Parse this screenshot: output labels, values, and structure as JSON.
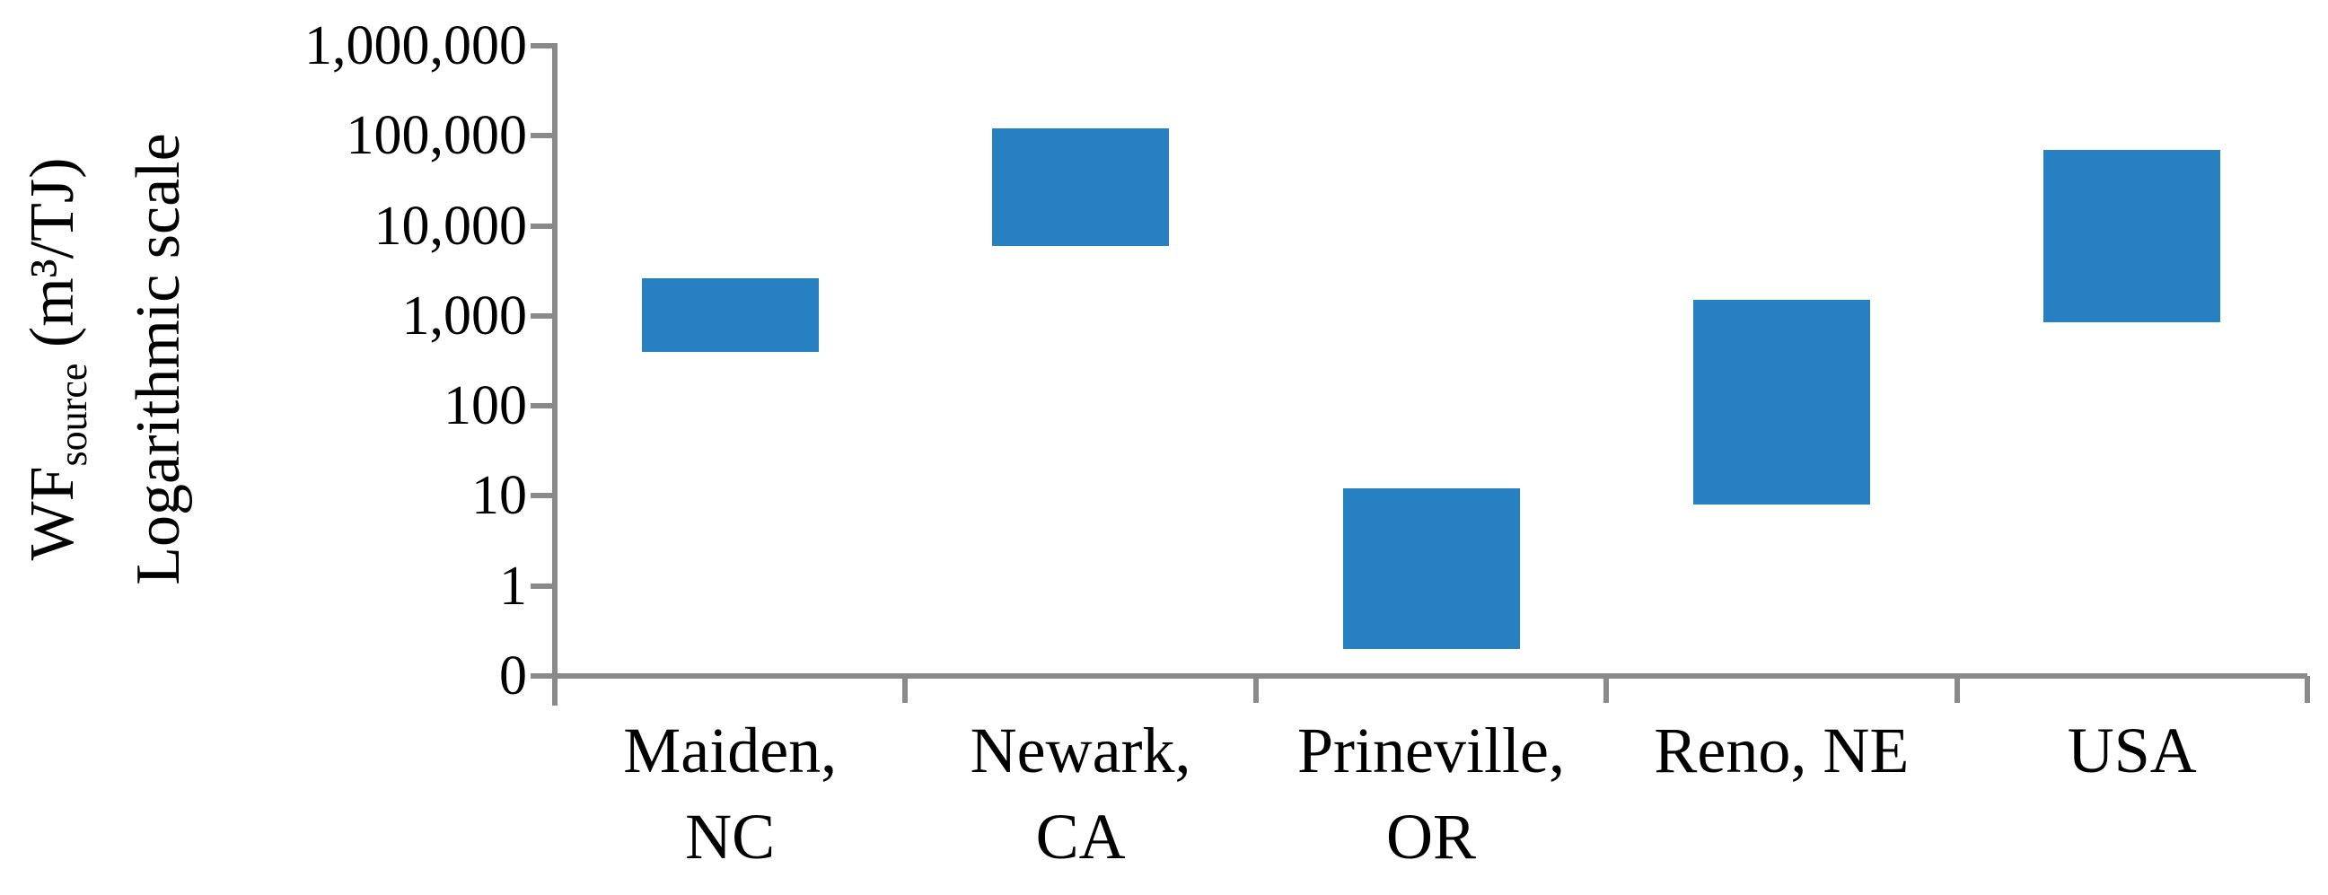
{
  "chart_data": {
    "type": "bar",
    "subtype": "floating-range-bars",
    "title": "",
    "ylabel_line1_base": "WF",
    "ylabel_line1_sub": "source",
    "ylabel_line1_unit": " (m³/TJ)",
    "ylabel_line2": "Logarithmic scale",
    "xlabel": "",
    "yscale": "log",
    "axis_min_value": 0.1,
    "axis_max_value": 1000000,
    "grid": false,
    "legend_position": "none",
    "y_ticks": [
      {
        "label": "1,000,000",
        "value": 1000000
      },
      {
        "label": "100,000",
        "value": 100000
      },
      {
        "label": "10,000",
        "value": 10000
      },
      {
        "label": "1,000",
        "value": 1000
      },
      {
        "label": "100",
        "value": 100
      },
      {
        "label": "10",
        "value": 10
      },
      {
        "label": "1",
        "value": 1
      },
      {
        "label": "0",
        "value": 0.1
      }
    ],
    "categories": [
      "Maiden,\nNC",
      "Newark,\nCA",
      "Prineville,\nOR",
      "Reno, NE",
      "USA"
    ],
    "series": [
      {
        "name": "WFsource range (m3/TJ)",
        "ranges": [
          {
            "category": "Maiden, NC",
            "low": 400,
            "high": 2600
          },
          {
            "category": "Newark, CA",
            "low": 6000,
            "high": 120000
          },
          {
            "category": "Prineville, OR",
            "low": 0.2,
            "high": 12
          },
          {
            "category": "Reno, NE",
            "low": 8,
            "high": 1500
          },
          {
            "category": "USA",
            "low": 850,
            "high": 70000
          }
        ]
      }
    ],
    "bar_color": "#2680c2",
    "axis_color": "#8a8a8a",
    "text_color": "#000000"
  }
}
